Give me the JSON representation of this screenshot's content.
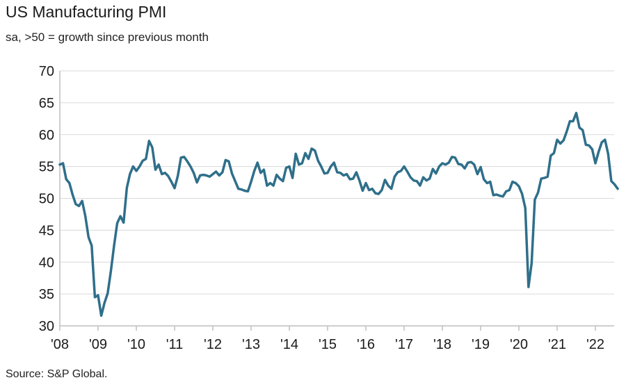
{
  "title": "US Manufacturing PMI",
  "subtitle": "sa, >50 = growth since previous month",
  "source": "Source: S&P Global.",
  "chart_data": {
    "type": "line",
    "title": "US Manufacturing PMI",
    "subtitle": "sa, >50 = growth since previous month",
    "xlabel": "",
    "ylabel": "",
    "ylim": [
      30,
      70
    ],
    "y_ticks": [
      30,
      35,
      40,
      45,
      50,
      55,
      60,
      65,
      70
    ],
    "x_ticks": [
      "'08",
      "'09",
      "'10",
      "'11",
      "'12",
      "'13",
      "'14",
      "'15",
      "'16",
      "'17",
      "'18",
      "'19",
      "'20",
      "'21",
      "'22"
    ],
    "x_tick_years": [
      2008,
      2009,
      2010,
      2011,
      2012,
      2013,
      2014,
      2015,
      2016,
      2017,
      2018,
      2019,
      2020,
      2021,
      2022
    ],
    "xlim": [
      "2008-01",
      "2022-08"
    ],
    "grid": "horizontal",
    "color": "#2f6f8a",
    "series": [
      {
        "name": "",
        "x": [
          "2008-01",
          "2008-02",
          "2008-03",
          "2008-04",
          "2008-05",
          "2008-06",
          "2008-07",
          "2008-08",
          "2008-09",
          "2008-10",
          "2008-11",
          "2008-12",
          "2009-01",
          "2009-02",
          "2009-03",
          "2009-04",
          "2009-05",
          "2009-06",
          "2009-07",
          "2009-08",
          "2009-09",
          "2009-10",
          "2009-11",
          "2009-12",
          "2010-01",
          "2010-02",
          "2010-03",
          "2010-04",
          "2010-05",
          "2010-06",
          "2010-07",
          "2010-08",
          "2010-09",
          "2010-10",
          "2010-11",
          "2010-12",
          "2011-01",
          "2011-02",
          "2011-03",
          "2011-04",
          "2011-05",
          "2011-06",
          "2011-07",
          "2011-08",
          "2011-09",
          "2011-10",
          "2011-11",
          "2011-12",
          "2012-01",
          "2012-02",
          "2012-03",
          "2012-04",
          "2012-05",
          "2012-06",
          "2012-07",
          "2012-08",
          "2012-09",
          "2012-10",
          "2012-11",
          "2012-12",
          "2013-01",
          "2013-02",
          "2013-03",
          "2013-04",
          "2013-05",
          "2013-06",
          "2013-07",
          "2013-08",
          "2013-09",
          "2013-10",
          "2013-11",
          "2013-12",
          "2014-01",
          "2014-02",
          "2014-03",
          "2014-04",
          "2014-05",
          "2014-06",
          "2014-07",
          "2014-08",
          "2014-09",
          "2014-10",
          "2014-11",
          "2014-12",
          "2015-01",
          "2015-02",
          "2015-03",
          "2015-04",
          "2015-05",
          "2015-06",
          "2015-07",
          "2015-08",
          "2015-09",
          "2015-10",
          "2015-11",
          "2015-12",
          "2016-01",
          "2016-02",
          "2016-03",
          "2016-04",
          "2016-05",
          "2016-06",
          "2016-07",
          "2016-08",
          "2016-09",
          "2016-10",
          "2016-11",
          "2016-12",
          "2017-01",
          "2017-02",
          "2017-03",
          "2017-04",
          "2017-05",
          "2017-06",
          "2017-07",
          "2017-08",
          "2017-09",
          "2017-10",
          "2017-11",
          "2017-12",
          "2018-01",
          "2018-02",
          "2018-03",
          "2018-04",
          "2018-05",
          "2018-06",
          "2018-07",
          "2018-08",
          "2018-09",
          "2018-10",
          "2018-11",
          "2018-12",
          "2019-01",
          "2019-02",
          "2019-03",
          "2019-04",
          "2019-05",
          "2019-06",
          "2019-07",
          "2019-08",
          "2019-09",
          "2019-10",
          "2019-11",
          "2019-12",
          "2020-01",
          "2020-02",
          "2020-03",
          "2020-04",
          "2020-05",
          "2020-06",
          "2020-07",
          "2020-08",
          "2020-09",
          "2020-10",
          "2020-11",
          "2020-12",
          "2021-01",
          "2021-02",
          "2021-03",
          "2021-04",
          "2021-05",
          "2021-06",
          "2021-07",
          "2021-08",
          "2021-09",
          "2021-10",
          "2021-11",
          "2021-12",
          "2022-01",
          "2022-02",
          "2022-03",
          "2022-04",
          "2022-05",
          "2022-06",
          "2022-07",
          "2022-08"
        ],
        "values": [
          55.3,
          55.5,
          53.0,
          52.4,
          50.6,
          49.1,
          48.8,
          49.6,
          47.2,
          43.9,
          42.6,
          34.5,
          34.8,
          31.6,
          33.6,
          35.1,
          38.5,
          42.5,
          46.1,
          47.2,
          46.2,
          51.6,
          53.8,
          55.0,
          54.3,
          55.0,
          55.9,
          56.2,
          59.0,
          58.0,
          54.5,
          55.3,
          53.8,
          54.0,
          53.5,
          52.6,
          51.6,
          53.5,
          56.4,
          56.5,
          55.8,
          55.0,
          54.0,
          52.5,
          53.6,
          53.7,
          53.6,
          53.4,
          53.8,
          54.2,
          53.6,
          54.1,
          56.0,
          55.8,
          53.9,
          52.7,
          51.5,
          51.4,
          51.2,
          51.1,
          52.6,
          54.3,
          55.6,
          54.0,
          54.5,
          52.0,
          52.4,
          52.0,
          53.7,
          53.1,
          52.7,
          54.8,
          55.0,
          53.2,
          57.0,
          55.3,
          55.5,
          57.1,
          56.2,
          57.8,
          57.5,
          55.9,
          55.0,
          53.9,
          54.0,
          55.0,
          55.6,
          54.1,
          54.0,
          53.6,
          53.8,
          53.0,
          53.1,
          54.1,
          52.8,
          51.2,
          52.4,
          51.3,
          51.5,
          50.8,
          50.7,
          51.3,
          52.9,
          52.0,
          51.5,
          53.4,
          54.1,
          54.3,
          55.0,
          54.2,
          53.3,
          52.8,
          52.7,
          52.0,
          53.3,
          52.8,
          53.1,
          54.6,
          53.9,
          55.0,
          55.5,
          55.3,
          55.6,
          56.5,
          56.4,
          55.4,
          55.3,
          54.7,
          55.6,
          55.7,
          55.3,
          53.8,
          54.9,
          53.0,
          52.4,
          52.6,
          50.5,
          50.6,
          50.4,
          50.3,
          51.1,
          51.3,
          52.6,
          52.4,
          51.9,
          50.7,
          48.5,
          36.1,
          39.8,
          49.8,
          50.9,
          53.1,
          53.2,
          53.4,
          56.7,
          57.1,
          59.2,
          58.6,
          59.1,
          60.5,
          62.1,
          62.1,
          63.4,
          61.1,
          60.7,
          58.4,
          58.3,
          57.7,
          55.5,
          57.3,
          58.8,
          59.2,
          57.0,
          52.7,
          52.2,
          51.5
        ]
      }
    ]
  }
}
